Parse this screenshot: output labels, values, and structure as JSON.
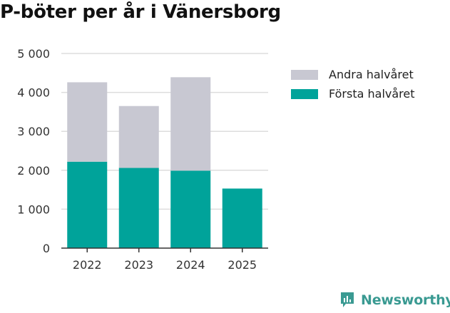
{
  "chart_data": {
    "type": "bar",
    "stacked": true,
    "title": "P-böter per år i Vänersborg",
    "categories": [
      "2022",
      "2023",
      "2024",
      "2025"
    ],
    "series": [
      {
        "name": "Första halvåret",
        "color": "#00a39a",
        "values": [
          2220,
          2060,
          1990,
          1530
        ]
      },
      {
        "name": "Andra halvåret",
        "color": "#c8c8d2",
        "values": [
          2040,
          1590,
          2400,
          null
        ]
      }
    ],
    "ylim": [
      0,
      5000
    ],
    "yticks": [
      0,
      1000,
      2000,
      3000,
      4000,
      5000
    ],
    "ytick_labels": [
      "0",
      "1 000",
      "2 000",
      "3 000",
      "4 000",
      "5 000"
    ],
    "grid": true,
    "legend_position": "right"
  },
  "legend": {
    "items": [
      {
        "label": "Andra halvåret",
        "color": "#c8c8d2"
      },
      {
        "label": "Första halvåret",
        "color": "#00a39a"
      }
    ]
  },
  "brand": {
    "name": "Newsworthy",
    "icon": "newsworthy-logo-icon",
    "color": "#3a9a92"
  }
}
